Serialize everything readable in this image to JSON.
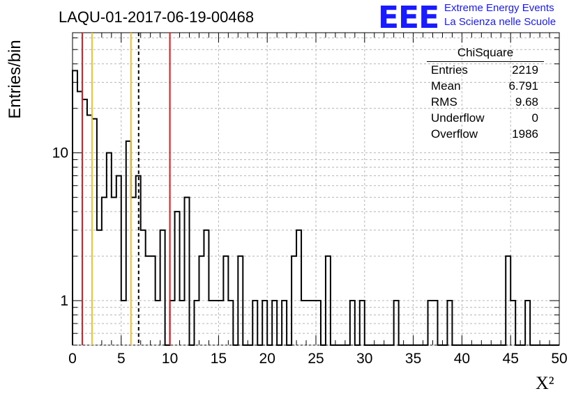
{
  "title": "LAQU-01-2017-06-19-00468",
  "logo": {
    "mark": "EEE",
    "line1": "Extreme Energy Events",
    "line2": "La Scienza nelle Scuole",
    "color": "#1a1aff"
  },
  "stats": {
    "title": "ChiSquare",
    "rows": [
      {
        "label": "Entries",
        "value": "2219"
      },
      {
        "label": "Mean",
        "value": "6.791"
      },
      {
        "label": "RMS",
        "value": "9.68"
      },
      {
        "label": "Underflow",
        "value": "0"
      },
      {
        "label": "Overflow",
        "value": "1986"
      }
    ]
  },
  "chart_data": {
    "type": "bar",
    "histogram_style": "step",
    "title": "LAQU-01-2017-06-19-00468",
    "xlabel": "X²",
    "ylabel": "Entries/bin",
    "xlim": [
      0,
      50
    ],
    "ylim": [
      0.5,
      65
    ],
    "y_scale": "log",
    "grid": true,
    "bin_width": 0.5,
    "x_ticks": [
      0,
      5,
      10,
      15,
      20,
      25,
      30,
      35,
      40,
      45,
      50
    ],
    "y_tick_labels": [
      {
        "value": 1,
        "label": "1"
      },
      {
        "value": 10,
        "label": "10"
      }
    ],
    "bins": [
      {
        "x0": 0.0,
        "count": 36
      },
      {
        "x0": 0.5,
        "count": 26
      },
      {
        "x0": 1.0,
        "count": 23
      },
      {
        "x0": 1.5,
        "count": 18
      },
      {
        "x0": 2.0,
        "count": 17
      },
      {
        "x0": 2.5,
        "count": 3
      },
      {
        "x0": 3.0,
        "count": 5
      },
      {
        "x0": 3.5,
        "count": 10
      },
      {
        "x0": 4.0,
        "count": 5
      },
      {
        "x0": 4.5,
        "count": 7
      },
      {
        "x0": 5.0,
        "count": 1
      },
      {
        "x0": 5.5,
        "count": 12
      },
      {
        "x0": 6.0,
        "count": 5
      },
      {
        "x0": 6.5,
        "count": 7
      },
      {
        "x0": 7.0,
        "count": 3
      },
      {
        "x0": 7.5,
        "count": 2
      },
      {
        "x0": 8.0,
        "count": 2
      },
      {
        "x0": 8.5,
        "count": 1
      },
      {
        "x0": 9.0,
        "count": 3
      },
      {
        "x0": 9.5,
        "count": 0
      },
      {
        "x0": 10.0,
        "count": 1
      },
      {
        "x0": 10.5,
        "count": 4
      },
      {
        "x0": 11.0,
        "count": 1
      },
      {
        "x0": 11.5,
        "count": 5
      },
      {
        "x0": 12.0,
        "count": 0
      },
      {
        "x0": 12.5,
        "count": 1
      },
      {
        "x0": 13.0,
        "count": 2
      },
      {
        "x0": 13.5,
        "count": 3
      },
      {
        "x0": 14.0,
        "count": 1
      },
      {
        "x0": 14.5,
        "count": 1
      },
      {
        "x0": 15.0,
        "count": 1
      },
      {
        "x0": 15.5,
        "count": 2
      },
      {
        "x0": 16.0,
        "count": 1
      },
      {
        "x0": 16.5,
        "count": 0
      },
      {
        "x0": 17.0,
        "count": 2
      },
      {
        "x0": 17.5,
        "count": 0
      },
      {
        "x0": 18.0,
        "count": 0
      },
      {
        "x0": 18.5,
        "count": 1
      },
      {
        "x0": 19.0,
        "count": 0
      },
      {
        "x0": 19.5,
        "count": 1
      },
      {
        "x0": 20.0,
        "count": 0
      },
      {
        "x0": 20.5,
        "count": 1
      },
      {
        "x0": 21.0,
        "count": 0
      },
      {
        "x0": 21.5,
        "count": 1
      },
      {
        "x0": 22.0,
        "count": 0
      },
      {
        "x0": 22.5,
        "count": 2
      },
      {
        "x0": 23.0,
        "count": 3
      },
      {
        "x0": 23.5,
        "count": 1
      },
      {
        "x0": 24.0,
        "count": 1
      },
      {
        "x0": 24.5,
        "count": 1
      },
      {
        "x0": 25.0,
        "count": 1
      },
      {
        "x0": 25.5,
        "count": 0
      },
      {
        "x0": 26.0,
        "count": 2
      },
      {
        "x0": 26.5,
        "count": 0
      },
      {
        "x0": 27.0,
        "count": 0
      },
      {
        "x0": 27.5,
        "count": 0
      },
      {
        "x0": 28.0,
        "count": 0
      },
      {
        "x0": 28.5,
        "count": 1
      },
      {
        "x0": 29.0,
        "count": 0
      },
      {
        "x0": 29.5,
        "count": 1
      },
      {
        "x0": 30.0,
        "count": 0
      },
      {
        "x0": 30.5,
        "count": 0
      },
      {
        "x0": 31.0,
        "count": 0
      },
      {
        "x0": 31.5,
        "count": 0
      },
      {
        "x0": 32.0,
        "count": 0
      },
      {
        "x0": 32.5,
        "count": 0
      },
      {
        "x0": 33.0,
        "count": 1
      },
      {
        "x0": 33.5,
        "count": 0
      },
      {
        "x0": 34.0,
        "count": 0
      },
      {
        "x0": 34.5,
        "count": 0
      },
      {
        "x0": 35.0,
        "count": 0
      },
      {
        "x0": 35.5,
        "count": 0
      },
      {
        "x0": 36.0,
        "count": 0
      },
      {
        "x0": 36.5,
        "count": 1
      },
      {
        "x0": 37.0,
        "count": 1
      },
      {
        "x0": 37.5,
        "count": 0
      },
      {
        "x0": 38.0,
        "count": 0
      },
      {
        "x0": 38.5,
        "count": 1
      },
      {
        "x0": 39.0,
        "count": 0
      },
      {
        "x0": 39.5,
        "count": 0
      },
      {
        "x0": 40.0,
        "count": 0
      },
      {
        "x0": 40.5,
        "count": 0
      },
      {
        "x0": 41.0,
        "count": 0
      },
      {
        "x0": 41.5,
        "count": 0
      },
      {
        "x0": 42.0,
        "count": 0
      },
      {
        "x0": 42.5,
        "count": 0
      },
      {
        "x0": 43.0,
        "count": 0
      },
      {
        "x0": 43.5,
        "count": 0
      },
      {
        "x0": 44.0,
        "count": 0
      },
      {
        "x0": 44.5,
        "count": 2
      },
      {
        "x0": 45.0,
        "count": 1
      },
      {
        "x0": 45.5,
        "count": 0
      },
      {
        "x0": 46.0,
        "count": 0
      },
      {
        "x0": 46.5,
        "count": 1
      },
      {
        "x0": 47.0,
        "count": 0
      },
      {
        "x0": 47.5,
        "count": 0
      },
      {
        "x0": 48.0,
        "count": 0
      },
      {
        "x0": 48.5,
        "count": 0
      },
      {
        "x0": 49.0,
        "count": 0
      },
      {
        "x0": 49.5,
        "count": 0
      }
    ],
    "reference_lines": [
      {
        "x": 1.0,
        "color": "#e8141c",
        "style": "solid"
      },
      {
        "x": 2.0,
        "color": "#f2c12e",
        "style": "solid"
      },
      {
        "x": 6.0,
        "color": "#f2c12e",
        "style": "solid"
      },
      {
        "x": 6.791,
        "color": "#000000",
        "style": "dashed"
      },
      {
        "x": 10.0,
        "color": "#e8141c",
        "style": "solid"
      }
    ]
  }
}
